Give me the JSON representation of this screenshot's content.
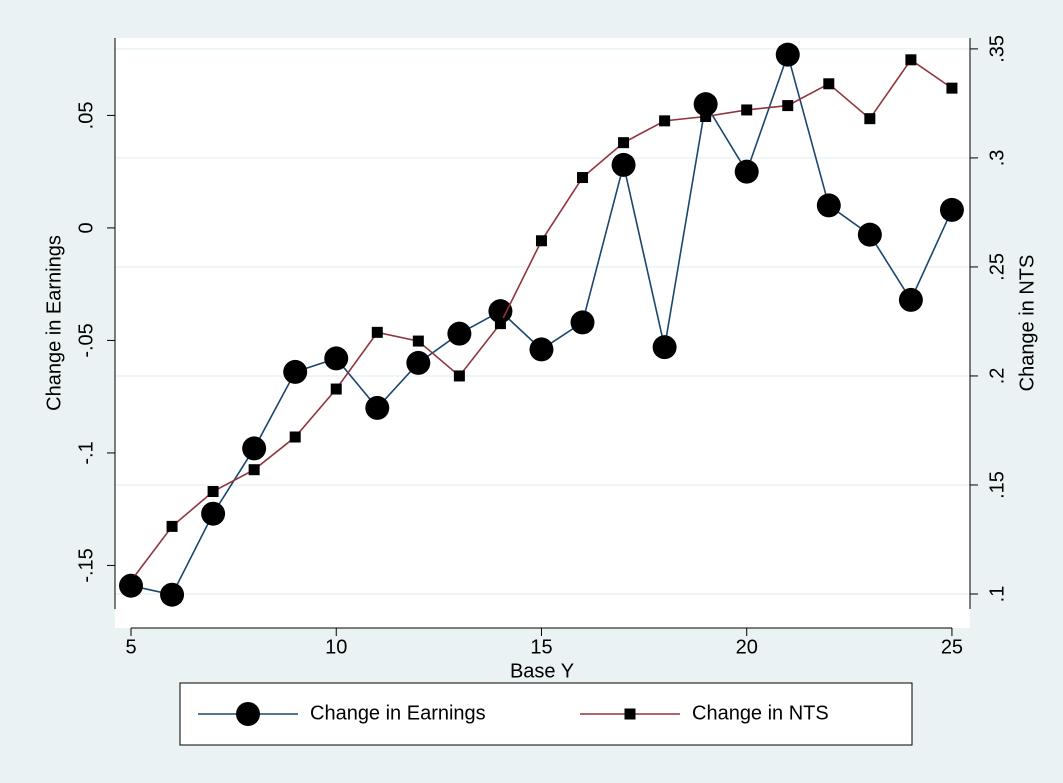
{
  "chart_data": {
    "type": "line",
    "x_label": "Base Y",
    "y_label": "Change in Earnings",
    "y2_label": "Change in NTS",
    "x": [
      5,
      6,
      7,
      8,
      9,
      10,
      11,
      12,
      13,
      14,
      15,
      16,
      17,
      18,
      19,
      20,
      21,
      22,
      23,
      24,
      25
    ],
    "series": [
      {
        "name": "Change in Earnings",
        "color": "#1a476f",
        "marker": "circle",
        "values": [
          -0.159,
          -0.163,
          -0.127,
          -0.098,
          -0.064,
          -0.058,
          -0.08,
          -0.06,
          -0.047,
          -0.037,
          -0.054,
          -0.042,
          0.028,
          -0.053,
          0.055,
          0.025,
          0.077,
          0.01,
          -0.003,
          -0.032,
          0.008
        ]
      },
      {
        "name": "Change in NTS",
        "color": "#90353b",
        "marker": "square",
        "axis": "y2",
        "values": [
          0.106,
          0.131,
          0.147,
          0.157,
          0.172,
          0.194,
          0.22,
          0.216,
          0.2,
          0.224,
          0.262,
          0.291,
          0.307,
          0.317,
          0.319,
          0.322,
          0.324,
          0.334,
          0.318,
          0.345,
          0.332
        ]
      }
    ],
    "xlim": [
      4.61,
      25.44
    ],
    "xticks": [
      5,
      10,
      15,
      20,
      25
    ],
    "ylim": [
      -0.1778,
      0.0844
    ],
    "yticks": [
      {
        "value": -0.15,
        "label": "-.15"
      },
      {
        "value": -0.1,
        "label": "-.1"
      },
      {
        "value": -0.05,
        "label": "-.05"
      },
      0,
      {
        "value": 0.05,
        "label": ".05"
      }
    ],
    "y2lim": [
      0.0844,
      0.355
    ],
    "y2ticks": [
      {
        "value": 0.1,
        "label": ".1"
      },
      {
        "value": 0.15,
        "label": ".15"
      },
      {
        "value": 0.2,
        "label": ".2"
      },
      {
        "value": 0.25,
        "label": ".25"
      },
      {
        "value": 0.3,
        "label": ".3"
      },
      {
        "value": 0.35,
        "label": ".35"
      }
    ],
    "grid": true,
    "grid_axis": "y2",
    "legend": "bottom"
  }
}
